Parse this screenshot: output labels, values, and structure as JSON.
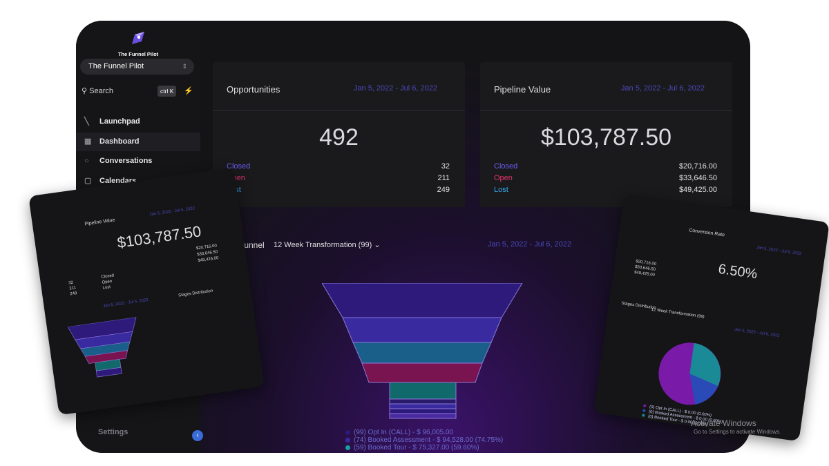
{
  "brand": {
    "name": "The Funnel Pilot"
  },
  "sidebar": {
    "org_selector": "The Funnel Pilot",
    "search_placeholder": "Search",
    "search_shortcut": "ctrl K",
    "items": [
      {
        "label": "Launchpad",
        "icon": "rocket-icon"
      },
      {
        "label": "Dashboard",
        "icon": "grid-icon"
      },
      {
        "label": "Conversations",
        "icon": "chat-icon"
      },
      {
        "label": "Calendars",
        "icon": "calendar-icon"
      }
    ],
    "settings": "Settings"
  },
  "opportunities": {
    "title": "Opportunities",
    "date_range": "Jan 5, 2022 - Jul 6, 2022",
    "total": "492",
    "rows": [
      {
        "label": "Closed",
        "value": "32"
      },
      {
        "label": "Open",
        "value": "211"
      },
      {
        "label": "Lost",
        "value": "249"
      }
    ]
  },
  "pipeline_value": {
    "title": "Pipeline Value",
    "date_range": "Jan 5, 2022 - Jul 6, 2022",
    "total": "$103,787.50",
    "rows": [
      {
        "label": "Closed",
        "value": "$20,716.00"
      },
      {
        "label": "Open",
        "value": "$33,646.50"
      },
      {
        "label": "Lost",
        "value": "$49,425.00"
      }
    ]
  },
  "funnel": {
    "title": "Funnel",
    "pipeline": "12 Week Transformation (99)",
    "date_range": "Jan 5, 2022 - Jul 6, 2022",
    "stages": [
      {
        "label": "(99) Opt In (CALL) - $ 96,005.00",
        "color": "#2d1a7a"
      },
      {
        "label": "(74) Booked Assessment - $ 94,528.00 (74.75%)",
        "color": "#3a2aa0"
      },
      {
        "label": "(59) Booked Tour - $ 75,327.00 (59.60%)",
        "color": "#1a5e8a"
      }
    ],
    "legend": [
      "(99) Opt In (CALL) - $ 96,005.00",
      "(74) Booked Assessment - $ 94,528.00 (74.75%)",
      "(59) Booked Tour - $ 75,327.00 (59.60%)"
    ]
  },
  "conversion_rate": {
    "title": "Conversion Rate",
    "date_range": "Jan 5, 2022 - Jul 6, 2022",
    "value": "6.50%"
  },
  "stages_distribution": {
    "title": "Stages Distribution",
    "pipeline": "12 Week Transformation (99)",
    "date_range": "Jan 5, 2022 - Jul 6, 2022",
    "legend": [
      "(0) Opt In (CALL) - $ 0.00 (0.00%)",
      "(0) Booked Assessment - $ 0.00 (0.00%)",
      "(0) Booked Tour - $ 0.00 (0.00%)"
    ]
  },
  "watermark": {
    "line1": "Activate Windows",
    "line2": "Go to Settings to activate Windows."
  }
}
